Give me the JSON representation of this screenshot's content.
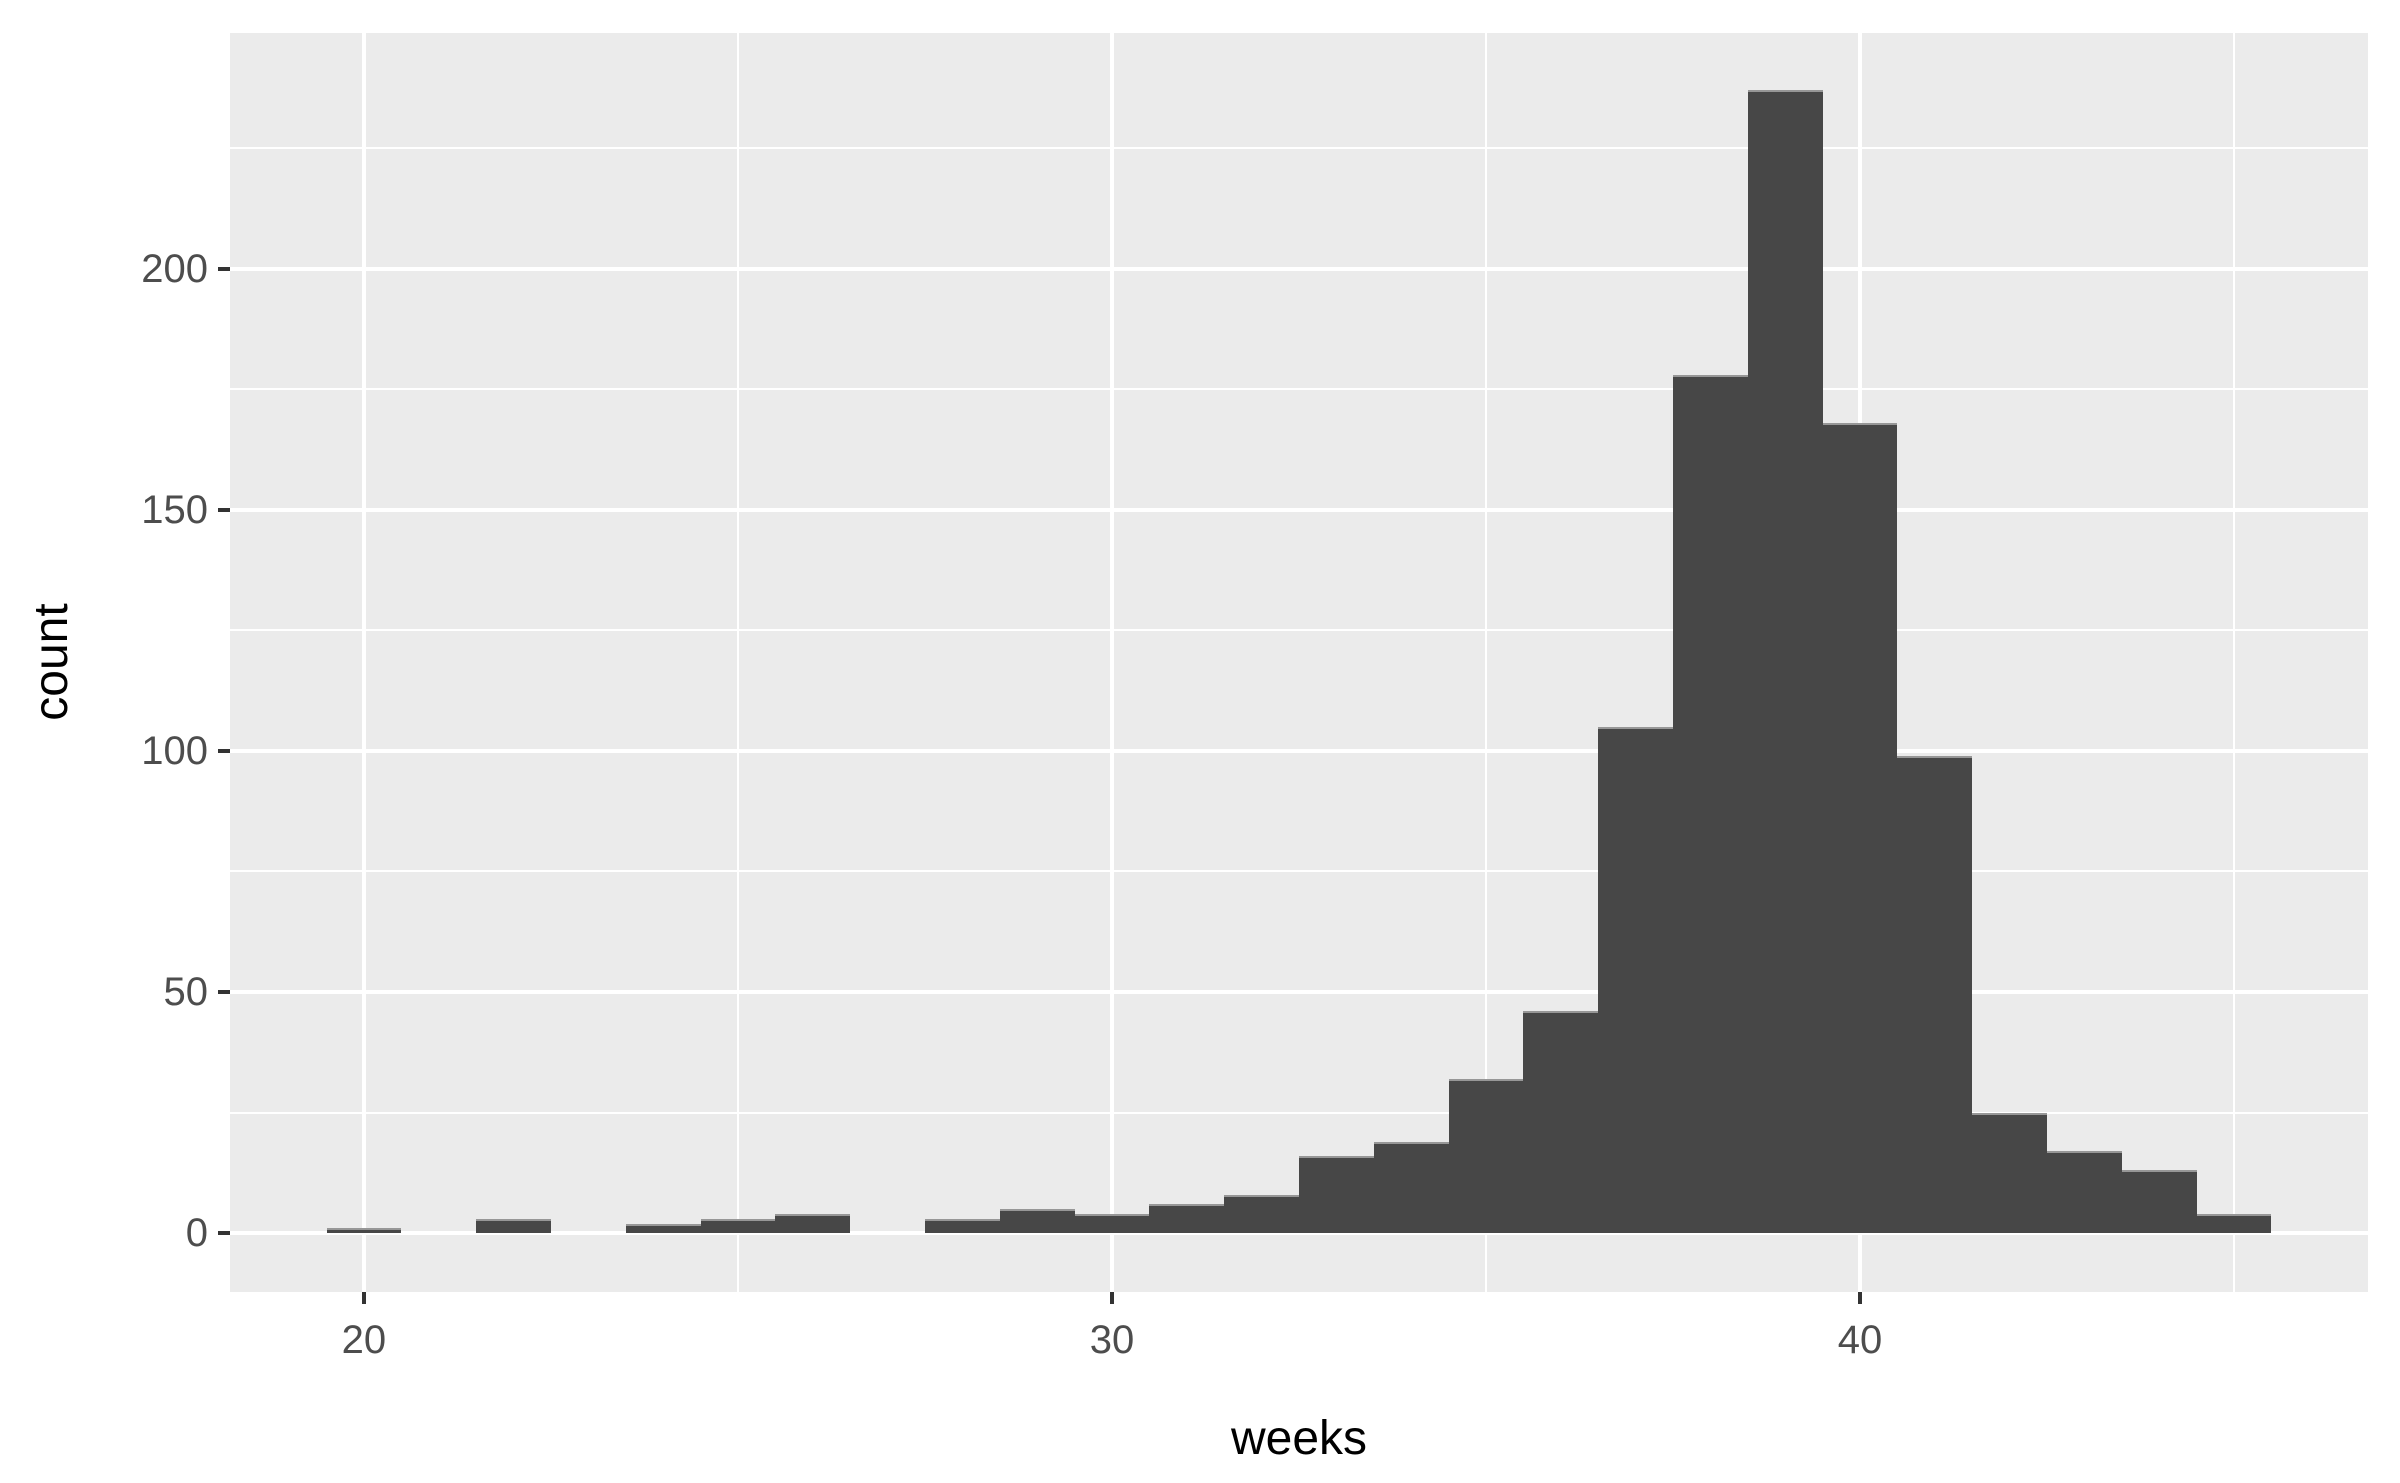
{
  "chart_data": {
    "type": "histogram",
    "title": "",
    "xlabel": "weeks",
    "ylabel": "count",
    "binwidth": 1,
    "bins": [
      {
        "week": 20,
        "count": 1
      },
      {
        "week": 21,
        "count": 0
      },
      {
        "week": 22,
        "count": 3
      },
      {
        "week": 23,
        "count": 0
      },
      {
        "week": 24,
        "count": 2
      },
      {
        "week": 25,
        "count": 3
      },
      {
        "week": 26,
        "count": 4
      },
      {
        "week": 27,
        "count": 0
      },
      {
        "week": 28,
        "count": 3
      },
      {
        "week": 29,
        "count": 5
      },
      {
        "week": 30,
        "count": 4
      },
      {
        "week": 31,
        "count": 6
      },
      {
        "week": 32,
        "count": 8
      },
      {
        "week": 33,
        "count": 16
      },
      {
        "week": 34,
        "count": 19
      },
      {
        "week": 35,
        "count": 32
      },
      {
        "week": 36,
        "count": 46
      },
      {
        "week": 37,
        "count": 105
      },
      {
        "week": 38,
        "count": 178
      },
      {
        "week": 39,
        "count": 237
      },
      {
        "week": 40,
        "count": 168
      },
      {
        "week": 41,
        "count": 99
      },
      {
        "week": 42,
        "count": 25
      },
      {
        "week": 43,
        "count": 17
      },
      {
        "week": 44,
        "count": 13
      },
      {
        "week": 45,
        "count": 4
      }
    ],
    "x_major_ticks": [
      20,
      30,
      40
    ],
    "x_minor_gridlines": [
      25,
      35,
      45
    ],
    "y_major_ticks": [
      0,
      50,
      100,
      150,
      200
    ],
    "y_minor_gridlines": [
      25,
      75,
      125,
      175,
      225
    ],
    "xlim": [
      18.21,
      46.79
    ],
    "ylim": [
      -12.2,
      248.85
    ],
    "grid": true,
    "legend_position": "none",
    "colors": {
      "bar_fill": "#474747",
      "bar_top_edge": "#979797",
      "panel_bg": "#EBEBEB",
      "gridline": "#FFFFFF",
      "tick_label": "#4D4D4D",
      "axis_title": "#000000",
      "tick_mark": "#333333",
      "page_bg": "#FFFFFF"
    }
  }
}
